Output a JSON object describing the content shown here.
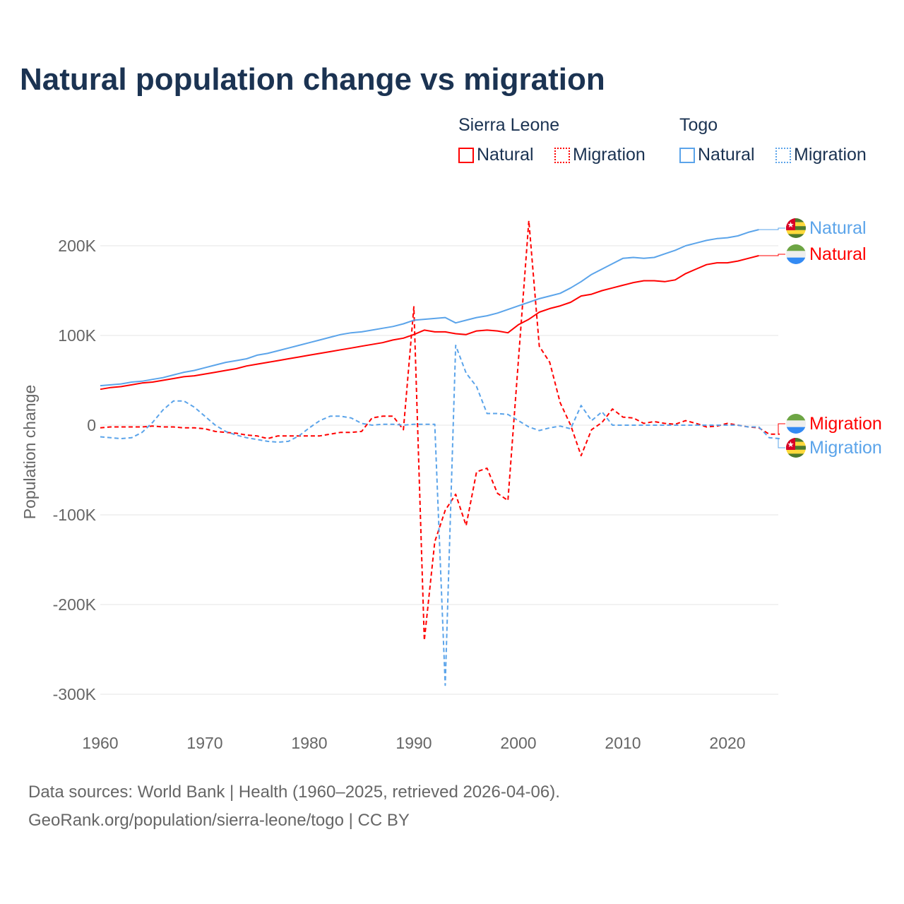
{
  "title": "Natural population change vs migration",
  "legend": {
    "groups": [
      {
        "country": "Sierra Leone",
        "items": [
          "Natural",
          "Migration"
        ],
        "color": "#ff0000"
      },
      {
        "country": "Togo",
        "items": [
          "Natural",
          "Migration"
        ],
        "color": "#5ba4ea"
      }
    ]
  },
  "footer": {
    "line1": "Data sources: World Bank | Health (1960–2025, retrieved 2026-04-06).",
    "line2": "GeoRank.org/population/sierra-leone/togo | CC BY"
  },
  "chart_data": {
    "type": "line",
    "title": "Natural population change vs migration",
    "xlabel": "",
    "ylabel": "Population change",
    "xlim": [
      1960,
      2025
    ],
    "ylim": [
      -300000,
      230000
    ],
    "x_ticks": [
      "1960",
      "1970",
      "1980",
      "1990",
      "2000",
      "2010",
      "2020"
    ],
    "y_ticks": [
      {
        "v": 200000,
        "label": "200K"
      },
      {
        "v": 100000,
        "label": "100K"
      },
      {
        "v": 0,
        "label": "0"
      },
      {
        "v": -100000,
        "label": "-100K"
      },
      {
        "v": -200000,
        "label": "-200K"
      },
      {
        "v": -300000,
        "label": "-300K"
      }
    ],
    "grid": true,
    "x_start": 1960,
    "series": [
      {
        "name": "Sierra Leone Natural",
        "label": "Natural",
        "country": "Sierra Leone",
        "color": "#ff0000",
        "dash": false,
        "values_k": [
          40,
          42,
          43,
          45,
          47,
          48,
          50,
          52,
          54,
          55,
          57,
          59,
          61,
          63,
          66,
          68,
          70,
          72,
          74,
          76,
          78,
          80,
          82,
          84,
          86,
          88,
          90,
          92,
          95,
          97,
          101,
          106,
          104,
          104,
          102,
          101,
          105,
          106,
          105,
          103,
          112,
          118,
          126,
          130,
          133,
          137,
          144,
          146,
          150,
          153,
          156,
          159,
          161,
          161,
          160,
          162,
          169,
          174,
          179,
          181,
          181,
          183,
          186,
          189
        ]
      },
      {
        "name": "Togo Natural",
        "label": "Natural",
        "country": "Togo",
        "color": "#5ba4ea",
        "dash": false,
        "values_k": [
          44,
          45,
          46,
          48,
          49,
          51,
          53,
          56,
          59,
          61,
          64,
          67,
          70,
          72,
          74,
          78,
          80,
          83,
          86,
          89,
          92,
          95,
          98,
          101,
          103,
          104,
          106,
          108,
          110,
          113,
          117,
          118,
          119,
          120,
          114,
          117,
          120,
          122,
          125,
          129,
          133,
          137,
          141,
          144,
          147,
          153,
          160,
          168,
          174,
          180,
          186,
          187,
          186,
          187,
          191,
          195,
          200,
          203,
          206,
          208,
          209,
          211,
          215,
          218
        ]
      },
      {
        "name": "Sierra Leone Migration",
        "label": "Migration",
        "country": "Sierra Leone",
        "color": "#ff0000",
        "dash": true,
        "values_k": [
          -3,
          -2,
          -2,
          -2,
          -2,
          -1,
          -2,
          -2,
          -3,
          -3,
          -4,
          -7,
          -8,
          -9,
          -11,
          -12,
          -15,
          -12,
          -12,
          -12,
          -12,
          -12,
          -10,
          -8,
          -8,
          -7,
          8,
          10,
          10,
          -5,
          132,
          -240,
          -130,
          -95,
          -77,
          -112,
          -52,
          -48,
          -76,
          -84,
          72,
          228,
          88,
          70,
          25,
          0,
          -34,
          -5,
          3,
          18,
          9,
          8,
          2,
          4,
          2,
          1,
          5,
          2,
          -2,
          -1,
          2,
          0,
          -2,
          -3,
          -10,
          -10
        ]
      },
      {
        "name": "Togo Migration",
        "label": "Migration",
        "country": "Togo",
        "color": "#5ba4ea",
        "dash": true,
        "values_k": [
          -13,
          -14,
          -15,
          -14,
          -8,
          3,
          17,
          27,
          27,
          20,
          10,
          0,
          -7,
          -11,
          -14,
          -16,
          -18,
          -19,
          -18,
          -12,
          -3,
          5,
          10,
          10,
          8,
          2,
          0,
          1,
          1,
          0,
          1,
          1,
          1,
          -290,
          89,
          58,
          43,
          13,
          13,
          12,
          5,
          -2,
          -6,
          -3,
          -1,
          -4,
          22,
          5,
          15,
          0,
          0,
          0,
          0,
          0,
          0,
          0,
          0,
          0,
          0,
          0,
          0,
          0,
          -2,
          -2,
          -14,
          -15
        ]
      }
    ]
  }
}
